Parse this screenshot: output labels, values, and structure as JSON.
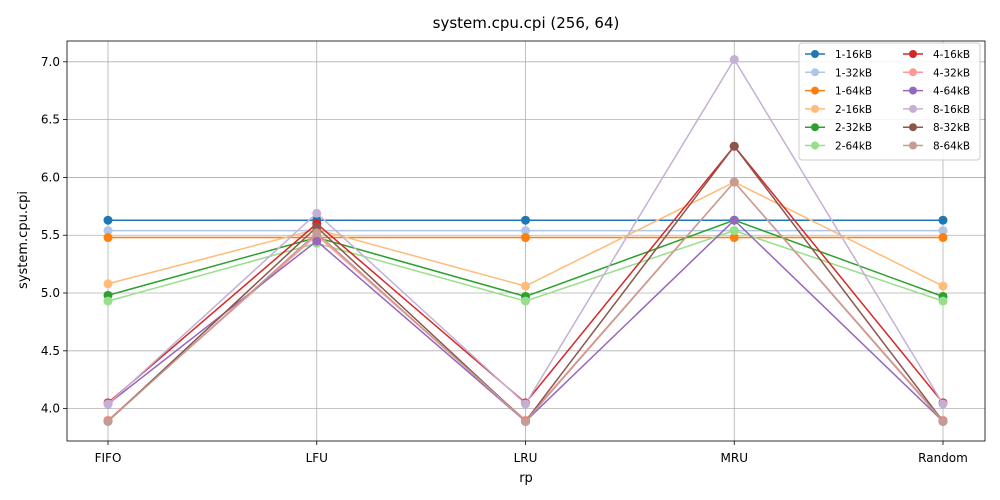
{
  "chart_data": {
    "type": "line",
    "title": "system.cpu.cpi (256, 64)",
    "xlabel": "rp",
    "ylabel": "system.cpu.cpi",
    "categories": [
      "FIFO",
      "LFU",
      "LRU",
      "MRU",
      "Random"
    ],
    "yticks": [
      "4.0",
      "4.5",
      "5.0",
      "5.5",
      "6.0",
      "6.5",
      "7.0"
    ],
    "ylim": [
      3.72,
      7.18
    ],
    "grid": true,
    "legend_position": "top-right",
    "legend_columns": 2,
    "series": [
      {
        "name": "1-16kB",
        "color": "#1f77b4",
        "values": [
          5.63,
          5.63,
          5.63,
          5.63,
          5.63
        ]
      },
      {
        "name": "1-32kB",
        "color": "#aec7e8",
        "values": [
          5.54,
          5.54,
          5.54,
          5.54,
          5.54
        ]
      },
      {
        "name": "1-64kB",
        "color": "#ff7f0e",
        "values": [
          5.48,
          5.48,
          5.48,
          5.48,
          5.48
        ]
      },
      {
        "name": "2-16kB",
        "color": "#ffbb78",
        "values": [
          5.08,
          5.55,
          5.06,
          5.96,
          5.06
        ]
      },
      {
        "name": "2-32kB",
        "color": "#2ca02c",
        "values": [
          4.98,
          5.48,
          4.97,
          5.63,
          4.97
        ]
      },
      {
        "name": "2-64kB",
        "color": "#98df8a",
        "values": [
          4.93,
          5.43,
          4.93,
          5.54,
          4.93
        ]
      },
      {
        "name": "4-16kB",
        "color": "#d62728",
        "values": [
          4.05,
          5.6,
          4.05,
          6.27,
          4.05
        ]
      },
      {
        "name": "4-32kB",
        "color": "#ff9896",
        "values": [
          3.9,
          5.5,
          3.9,
          5.96,
          3.9
        ]
      },
      {
        "name": "4-64kB",
        "color": "#9467bd",
        "values": [
          4.04,
          5.45,
          3.89,
          5.63,
          3.89
        ]
      },
      {
        "name": "8-16kB",
        "color": "#c5b0d5",
        "values": [
          4.04,
          5.69,
          4.04,
          7.02,
          4.04
        ]
      },
      {
        "name": "8-32kB",
        "color": "#8c564b",
        "values": [
          3.89,
          5.57,
          3.89,
          6.27,
          3.89
        ]
      },
      {
        "name": "8-64kB",
        "color": "#c49c94",
        "values": [
          3.89,
          5.52,
          3.89,
          5.96,
          3.89
        ]
      }
    ]
  }
}
